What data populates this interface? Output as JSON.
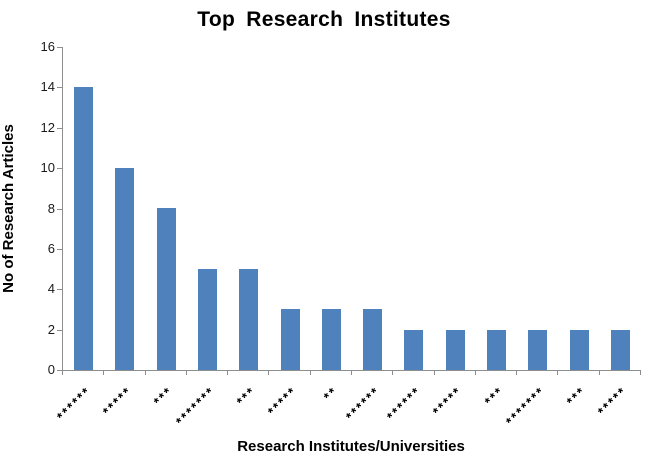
{
  "chart_data": {
    "type": "bar",
    "title": "Top Research Institutes",
    "xlabel": "Research Institutes/Universities",
    "ylabel": "No of Research Articles",
    "categories": [
      "******",
      "*****",
      "***",
      "*******",
      "***",
      "*****",
      "**",
      "******",
      "******",
      "*****",
      "***",
      "*******",
      "***",
      "*****"
    ],
    "values": [
      14,
      10,
      8,
      5,
      5,
      3,
      3,
      3,
      2,
      2,
      2,
      2,
      2,
      2
    ],
    "ylim": [
      0,
      16
    ],
    "yticks": [
      0,
      2,
      4,
      6,
      8,
      10,
      12,
      14,
      16
    ],
    "grid": false,
    "legend": "none",
    "bar_color": "#4F81BD",
    "axis_color": "#8E8E8E",
    "text_color": "#1A1A1A"
  }
}
